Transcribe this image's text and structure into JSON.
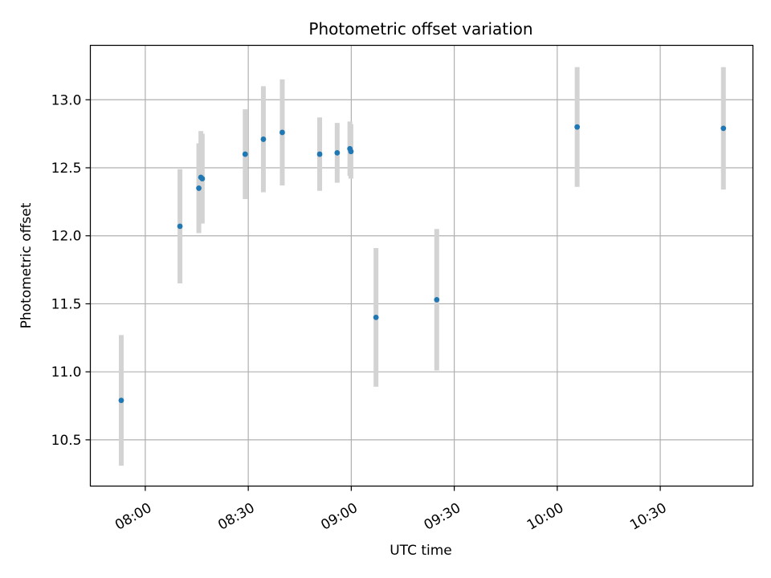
{
  "chart_data": {
    "type": "scatter",
    "title": "Photometric offset variation",
    "xlabel": "UTC time",
    "ylabel": "Photometric offset",
    "grid": true,
    "xlim_minutes": [
      464,
      657
    ],
    "ylim": [
      10.16,
      13.4
    ],
    "x_ticks": [
      {
        "minutes": 480,
        "label": "08:00"
      },
      {
        "minutes": 510,
        "label": "08:30"
      },
      {
        "minutes": 540,
        "label": "09:00"
      },
      {
        "minutes": 570,
        "label": "09:30"
      },
      {
        "minutes": 600,
        "label": "10:00"
      },
      {
        "minutes": 630,
        "label": "10:30"
      }
    ],
    "y_ticks": [
      {
        "value": 10.5,
        "label": "10.5"
      },
      {
        "value": 11.0,
        "label": "11.0"
      },
      {
        "value": 11.5,
        "label": "11.5"
      },
      {
        "value": 12.0,
        "label": "12.0"
      },
      {
        "value": 12.5,
        "label": "12.5"
      },
      {
        "value": 13.0,
        "label": "13.0"
      }
    ],
    "series": [
      {
        "name": "offset",
        "color": "#1f77b4",
        "errorbar_color": "#d3d3d3",
        "points": [
          {
            "time": "07:53",
            "minutes": 473.0,
            "y": 10.79,
            "err": 0.48
          },
          {
            "time": "08:10",
            "minutes": 490.1,
            "y": 12.07,
            "err": 0.42
          },
          {
            "time": "08:15",
            "minutes": 495.6,
            "y": 12.35,
            "err": 0.33
          },
          {
            "time": "08:16",
            "minutes": 496.2,
            "y": 12.43,
            "err": 0.34
          },
          {
            "time": "08:16",
            "minutes": 496.6,
            "y": 12.42,
            "err": 0.33
          },
          {
            "time": "08:29",
            "minutes": 509.1,
            "y": 12.6,
            "err": 0.33
          },
          {
            "time": "08:34",
            "minutes": 514.4,
            "y": 12.71,
            "err": 0.39
          },
          {
            "time": "08:40",
            "minutes": 519.9,
            "y": 12.76,
            "err": 0.39
          },
          {
            "time": "08:51",
            "minutes": 530.8,
            "y": 12.6,
            "err": 0.27
          },
          {
            "time": "08:56",
            "minutes": 535.9,
            "y": 12.61,
            "err": 0.22
          },
          {
            "time": "08:59",
            "minutes": 539.6,
            "y": 12.64,
            "err": 0.2
          },
          {
            "time": "09:00",
            "minutes": 539.9,
            "y": 12.62,
            "err": 0.2
          },
          {
            "time": "09:07",
            "minutes": 547.2,
            "y": 11.4,
            "err": 0.51
          },
          {
            "time": "09:25",
            "minutes": 564.9,
            "y": 11.53,
            "err": 0.52
          },
          {
            "time": "10:06",
            "minutes": 605.8,
            "y": 12.8,
            "err": 0.44
          },
          {
            "time": "10:48",
            "minutes": 648.4,
            "y": 12.79,
            "err": 0.45
          }
        ]
      }
    ]
  }
}
